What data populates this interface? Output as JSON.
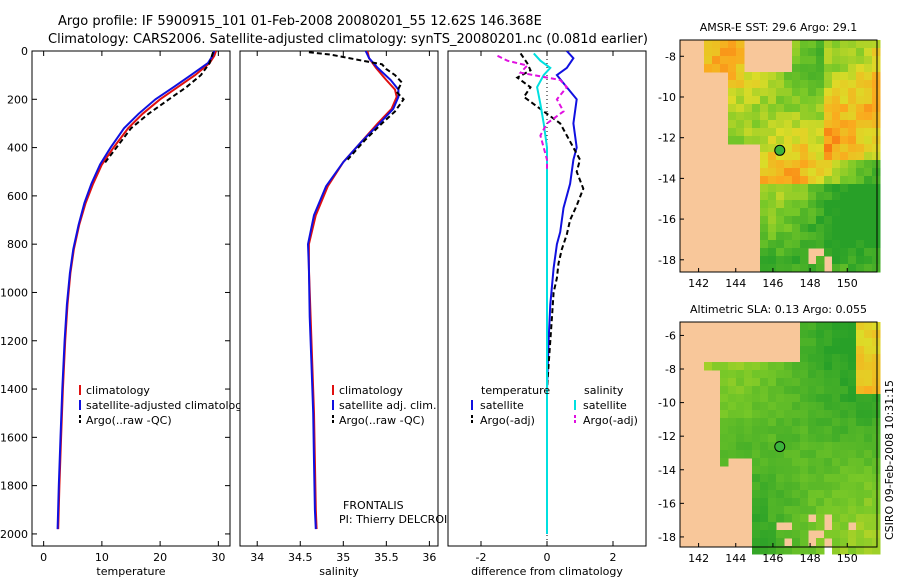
{
  "header": {
    "line1": "Argo profile: IF 5900915_101 01-Feb-2008 20080201_55 12.62S 146.368E",
    "line2": "Climatology: CARS2006. Satellite-adjusted climatology: synTS_20080201.nc (0.081d earlier)"
  },
  "timestamp": "CSIRO 09-Feb-2008 10:31:15",
  "colors": {
    "climatology": "#e01010",
    "satellite": "#1010e0",
    "argo": "#000000",
    "salinity_satellite": "#00e0e0",
    "salinity_argo": "#e010e0",
    "land": "#f8c79a"
  },
  "chart_data": [
    {
      "type": "line",
      "xlabel": "temperature",
      "ylabel": "",
      "xlim": [
        -2,
        32
      ],
      "ylim": [
        2050,
        0
      ],
      "xticks": [
        0,
        10,
        20,
        30
      ],
      "yticks": [
        0,
        200,
        400,
        600,
        800,
        1000,
        1200,
        1400,
        1600,
        1800,
        2000
      ],
      "legend": {
        "placement": "lower-right",
        "items": [
          {
            "label": "climatology",
            "color": "#e01010",
            "style": "solid"
          },
          {
            "label": "satellite-adjusted climatolog",
            "color": "#1010e0",
            "style": "solid"
          },
          {
            "label": "Argo(..raw -QC)",
            "color": "#000000",
            "style": "dashed"
          }
        ]
      },
      "series": [
        {
          "name": "climatology",
          "color": "#e01010",
          "dash": "",
          "points": [
            [
              29.6,
              0
            ],
            [
              29.3,
              20
            ],
            [
              28.5,
              50
            ],
            [
              26,
              100
            ],
            [
              23,
              150
            ],
            [
              20,
              200
            ],
            [
              17,
              260
            ],
            [
              14.5,
              320
            ],
            [
              12,
              400
            ],
            [
              10,
              470
            ],
            [
              8.5,
              550
            ],
            [
              7.2,
              630
            ],
            [
              6.1,
              720
            ],
            [
              5.2,
              820
            ],
            [
              4.6,
              920
            ],
            [
              4.1,
              1050
            ],
            [
              3.7,
              1200
            ],
            [
              3.3,
              1400
            ],
            [
              3.0,
              1600
            ],
            [
              2.7,
              1800
            ],
            [
              2.5,
              1980
            ]
          ]
        },
        {
          "name": "satellite-adjusted climatology",
          "color": "#1010e0",
          "dash": "",
          "points": [
            [
              29.3,
              0
            ],
            [
              29.0,
              20
            ],
            [
              28.2,
              50
            ],
            [
              25.3,
              100
            ],
            [
              22.3,
              150
            ],
            [
              19.2,
              200
            ],
            [
              16.3,
              260
            ],
            [
              13.8,
              320
            ],
            [
              11.5,
              400
            ],
            [
              9.7,
              470
            ],
            [
              8.2,
              550
            ],
            [
              7.0,
              630
            ],
            [
              6.0,
              720
            ],
            [
              5.1,
              820
            ],
            [
              4.5,
              920
            ],
            [
              4.0,
              1050
            ],
            [
              3.6,
              1200
            ],
            [
              3.2,
              1400
            ],
            [
              2.9,
              1600
            ],
            [
              2.6,
              1800
            ],
            [
              2.4,
              1980
            ]
          ]
        },
        {
          "name": "Argo(..raw -QC)",
          "color": "#000000",
          "dash": "5,3",
          "points": [
            [
              29.1,
              5
            ],
            [
              28.9,
              20
            ],
            [
              28.5,
              50
            ],
            [
              27,
              100
            ],
            [
              24.5,
              150
            ],
            [
              21.5,
              200
            ],
            [
              18,
              260
            ],
            [
              15,
              320
            ],
            [
              12.5,
              400
            ],
            [
              10.3,
              470
            ]
          ]
        }
      ]
    },
    {
      "type": "line",
      "xlabel": "salinity",
      "ylabel": "",
      "xlim": [
        33.8,
        36.1
      ],
      "ylim": [
        2050,
        0
      ],
      "xticks": [
        34,
        34.5,
        35,
        35.5,
        36
      ],
      "yticks": [],
      "legend": {
        "placement": "lower-right",
        "items": [
          {
            "label": "climatology",
            "color": "#e01010",
            "style": "solid"
          },
          {
            "label": "satellite adj. clim.",
            "color": "#1010e0",
            "style": "solid"
          },
          {
            "label": "Argo(..raw -QC)",
            "color": "#000000",
            "style": "dashed"
          }
        ]
      },
      "annotations": [
        "FRONTALIS",
        "PI: Thierry DELCROIX"
      ],
      "series": [
        {
          "name": "climatology",
          "color": "#e01010",
          "dash": "",
          "points": [
            [
              35.28,
              0
            ],
            [
              35.3,
              30
            ],
            [
              35.38,
              70
            ],
            [
              35.5,
              120
            ],
            [
              35.6,
              160
            ],
            [
              35.62,
              190
            ],
            [
              35.56,
              240
            ],
            [
              35.4,
              300
            ],
            [
              35.2,
              380
            ],
            [
              35.0,
              460
            ],
            [
              34.82,
              560
            ],
            [
              34.68,
              680
            ],
            [
              34.6,
              800
            ],
            [
              34.6,
              900
            ],
            [
              34.62,
              1100
            ],
            [
              34.64,
              1300
            ],
            [
              34.66,
              1500
            ],
            [
              34.67,
              1700
            ],
            [
              34.68,
              1900
            ],
            [
              34.69,
              1980
            ]
          ]
        },
        {
          "name": "satellite adj. clim.",
          "color": "#1010e0",
          "dash": "",
          "points": [
            [
              35.26,
              0
            ],
            [
              35.3,
              30
            ],
            [
              35.4,
              70
            ],
            [
              35.55,
              120
            ],
            [
              35.64,
              160
            ],
            [
              35.64,
              190
            ],
            [
              35.58,
              240
            ],
            [
              35.42,
              300
            ],
            [
              35.2,
              380
            ],
            [
              35.0,
              460
            ],
            [
              34.8,
              560
            ],
            [
              34.66,
              680
            ],
            [
              34.59,
              800
            ],
            [
              34.6,
              900
            ],
            [
              34.61,
              1100
            ],
            [
              34.63,
              1300
            ],
            [
              34.65,
              1500
            ],
            [
              34.66,
              1700
            ],
            [
              34.67,
              1900
            ],
            [
              34.68,
              1980
            ]
          ]
        },
        {
          "name": "Argo(..raw -QC)",
          "color": "#000000",
          "dash": "5,3",
          "points": [
            [
              34.6,
              5
            ],
            [
              34.85,
              15
            ],
            [
              35.0,
              25
            ],
            [
              35.15,
              35
            ],
            [
              35.3,
              45
            ],
            [
              35.45,
              55
            ],
            [
              35.5,
              75
            ],
            [
              35.6,
              100
            ],
            [
              35.68,
              130
            ],
            [
              35.62,
              170
            ],
            [
              35.7,
              200
            ],
            [
              35.6,
              250
            ],
            [
              35.45,
              300
            ],
            [
              35.25,
              370
            ],
            [
              35.05,
              450
            ]
          ]
        }
      ]
    },
    {
      "type": "line",
      "xlabel": "difference from climatology",
      "ylabel": "",
      "xlim": [
        -3,
        3
      ],
      "ylim": [
        2050,
        0
      ],
      "xticks": [
        -2,
        0,
        2
      ],
      "yticks": [],
      "legend": {
        "placement": "lower-center",
        "items": [
          {
            "label": "temperature",
            "group": "temperature",
            "color": "",
            "style": "header"
          },
          {
            "label": "satellite",
            "group": "temperature",
            "color": "#1010e0",
            "style": "solid"
          },
          {
            "label": "Argo(-adj)",
            "group": "temperature",
            "color": "#000000",
            "style": "dashed"
          },
          {
            "label": "salinity",
            "group": "salinity",
            "color": "",
            "style": "header"
          },
          {
            "label": "satellite",
            "group": "salinity",
            "color": "#00e0e0",
            "style": "solid"
          },
          {
            "label": "Argo(-adj)",
            "group": "salinity",
            "color": "#e010e0",
            "style": "dashed"
          }
        ]
      },
      "series": [
        {
          "name": "temperature satellite",
          "color": "#1010e0",
          "dash": "",
          "points": [
            [
              0.6,
              0
            ],
            [
              0.8,
              30
            ],
            [
              0.6,
              70
            ],
            [
              0.3,
              100
            ],
            [
              0.6,
              150
            ],
            [
              0.9,
              200
            ],
            [
              0.8,
              300
            ],
            [
              0.9,
              400
            ],
            [
              0.8,
              450
            ],
            [
              0.7,
              550
            ],
            [
              0.5,
              650
            ],
            [
              0.4,
              750
            ],
            [
              0.3,
              800
            ],
            [
              0.2,
              900
            ],
            [
              0.1,
              1050
            ],
            [
              0.05,
              1200
            ],
            [
              0,
              1400
            ],
            [
              0,
              1600
            ],
            [
              0,
              1800
            ],
            [
              0,
              2000
            ]
          ]
        },
        {
          "name": "temperature Argo(-adj)",
          "color": "#000000",
          "dash": "5,3",
          "points": [
            [
              -0.8,
              10
            ],
            [
              -0.6,
              50
            ],
            [
              -0.5,
              80
            ],
            [
              -0.9,
              110
            ],
            [
              -0.5,
              150
            ],
            [
              -0.7,
              190
            ],
            [
              -0.3,
              230
            ],
            [
              0,
              260
            ],
            [
              0.4,
              300
            ],
            [
              0.6,
              350
            ],
            [
              0.8,
              400
            ],
            [
              1.0,
              450
            ],
            [
              0.9,
              500
            ],
            [
              1.1,
              570
            ],
            [
              0.9,
              640
            ],
            [
              0.7,
              700
            ],
            [
              0.6,
              760
            ],
            [
              0.45,
              820
            ],
            [
              0.35,
              880
            ],
            [
              0.3,
              940
            ],
            [
              0.2,
              1000
            ],
            [
              0.15,
              1100
            ],
            [
              0.1,
              1200
            ],
            [
              0.05,
              1300
            ],
            [
              0,
              1400
            ],
            [
              0,
              1500
            ]
          ]
        },
        {
          "name": "salinity satellite",
          "color": "#00e0e0",
          "dash": "",
          "points": [
            [
              -0.4,
              10
            ],
            [
              -0.2,
              40
            ],
            [
              0.1,
              70
            ],
            [
              -0.1,
              100
            ],
            [
              -0.3,
              150
            ],
            [
              -0.2,
              220
            ],
            [
              -0.1,
              300
            ],
            [
              0,
              400
            ],
            [
              0,
              500
            ],
            [
              0,
              600
            ],
            [
              0,
              700
            ],
            [
              0,
              800
            ],
            [
              0,
              900
            ],
            [
              0,
              1000
            ],
            [
              0,
              1100
            ],
            [
              0,
              1200
            ],
            [
              0,
              1300
            ],
            [
              0,
              1400
            ],
            [
              0,
              1500
            ],
            [
              0,
              1600
            ],
            [
              0,
              1700
            ],
            [
              0,
              1800
            ],
            [
              0,
              1900
            ],
            [
              0,
              2000
            ]
          ]
        },
        {
          "name": "salinity Argo(-adj)",
          "color": "#e010e0",
          "dash": "5,3",
          "points": [
            [
              -1.5,
              20
            ],
            [
              -1.2,
              40
            ],
            [
              -0.6,
              60
            ],
            [
              -0.8,
              90
            ],
            [
              0.4,
              120
            ],
            [
              0.6,
              150
            ],
            [
              0.3,
              200
            ],
            [
              0.5,
              250
            ],
            [
              0,
              300
            ],
            [
              -0.2,
              350
            ],
            [
              -0.1,
              400
            ],
            [
              0,
              450
            ],
            [
              0,
              500
            ]
          ]
        }
      ]
    },
    {
      "type": "heatmap",
      "title": "AMSR-E SST: 29.6 Argo: 29.1",
      "xticks": [
        142,
        144,
        146,
        148,
        150
      ],
      "yticks": [
        -8,
        -10,
        -12,
        -14,
        -16,
        -18
      ],
      "xlim": [
        141,
        151.6
      ],
      "ylim": [
        -18.6,
        -7.2
      ],
      "marker": {
        "lon": 146.368,
        "lat": -12.62
      }
    },
    {
      "type": "heatmap",
      "title": "Altimetric SLA: 0.13 Argo: 0.055",
      "xticks": [
        142,
        144,
        146,
        148,
        150
      ],
      "yticks": [
        -6,
        -8,
        -10,
        -12,
        -14,
        -16,
        -18
      ],
      "xlim": [
        141,
        151.6
      ],
      "ylim": [
        -18.6,
        -5.2
      ],
      "marker": {
        "lon": 146.368,
        "lat": -12.62
      }
    }
  ]
}
